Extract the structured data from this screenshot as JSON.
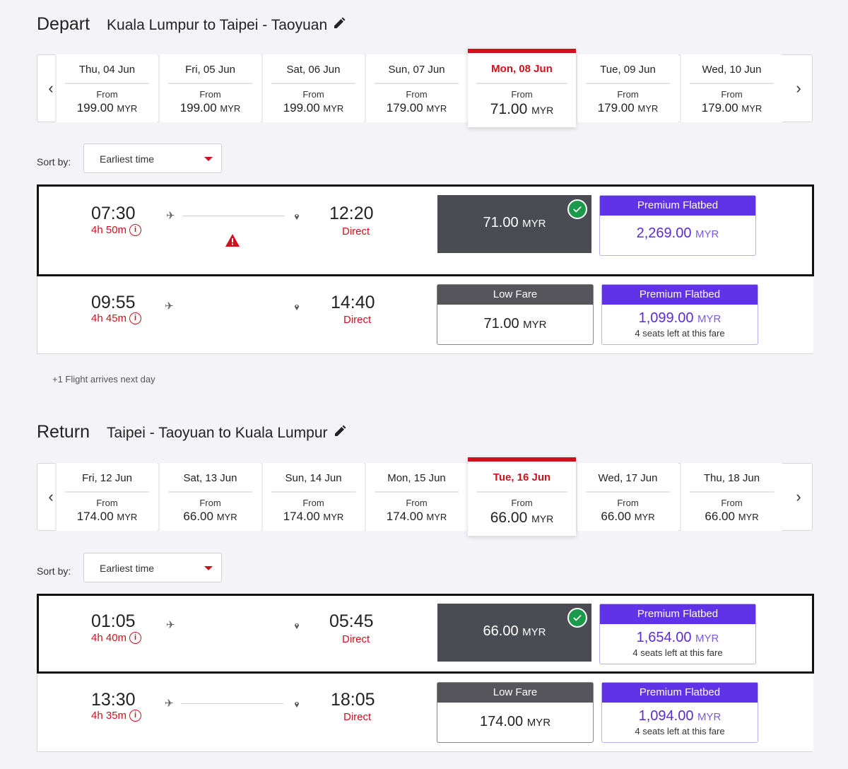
{
  "depart": {
    "title": "Depart",
    "route": "Kuala Lumpur to Taipei - Taoyuan",
    "days": [
      {
        "label": "Thu, 04 Jun",
        "from": "From",
        "price": "199.00",
        "cur": "MYR"
      },
      {
        "label": "Fri, 05 Jun",
        "from": "From",
        "price": "199.00",
        "cur": "MYR"
      },
      {
        "label": "Sat, 06 Jun",
        "from": "From",
        "price": "199.00",
        "cur": "MYR"
      },
      {
        "label": "Sun, 07 Jun",
        "from": "From",
        "price": "179.00",
        "cur": "MYR"
      },
      {
        "label": "Mon, 08 Jun",
        "from": "From",
        "price": "71.00",
        "cur": "MYR"
      },
      {
        "label": "Tue, 09 Jun",
        "from": "From",
        "price": "179.00",
        "cur": "MYR"
      },
      {
        "label": "Wed, 10 Jun",
        "from": "From",
        "price": "179.00",
        "cur": "MYR"
      }
    ],
    "sort_label": "Sort by:",
    "sort_value": "Earliest time",
    "flights": [
      {
        "dep": "07:30",
        "dur": "4h 50m",
        "arr": "12:20",
        "direct": "Direct",
        "selected_fare": "71.00",
        "cur": "MYR",
        "prem_hdr": "Premium Flatbed",
        "prem_price": "2,269.00",
        "prem_seats": ""
      },
      {
        "dep": "09:55",
        "dur": "4h 45m",
        "arr": "14:40",
        "direct": "Direct",
        "low_hdr": "Low Fare",
        "low_price": "71.00",
        "cur": "MYR",
        "prem_hdr": "Premium Flatbed",
        "prem_price": "1,099.00",
        "prem_seats": "4 seats left at this fare"
      }
    ],
    "note": "+1 Flight arrives next day"
  },
  "return": {
    "title": "Return",
    "route": "Taipei - Taoyuan to Kuala Lumpur",
    "days": [
      {
        "label": "Fri, 12 Jun",
        "from": "From",
        "price": "174.00",
        "cur": "MYR"
      },
      {
        "label": "Sat, 13 Jun",
        "from": "From",
        "price": "66.00",
        "cur": "MYR"
      },
      {
        "label": "Sun, 14 Jun",
        "from": "From",
        "price": "174.00",
        "cur": "MYR"
      },
      {
        "label": "Mon, 15 Jun",
        "from": "From",
        "price": "174.00",
        "cur": "MYR"
      },
      {
        "label": "Tue, 16 Jun",
        "from": "From",
        "price": "66.00",
        "cur": "MYR"
      },
      {
        "label": "Wed, 17 Jun",
        "from": "From",
        "price": "66.00",
        "cur": "MYR"
      },
      {
        "label": "Thu, 18 Jun",
        "from": "From",
        "price": "66.00",
        "cur": "MYR"
      }
    ],
    "sort_label": "Sort by:",
    "sort_value": "Earliest time",
    "flights": [
      {
        "dep": "01:05",
        "dur": "4h 40m",
        "arr": "05:45",
        "direct": "Direct",
        "selected_fare": "66.00",
        "cur": "MYR",
        "prem_hdr": "Premium Flatbed",
        "prem_price": "1,654.00",
        "prem_seats": "4 seats left at this fare"
      },
      {
        "dep": "13:30",
        "dur": "4h 35m",
        "arr": "18:05",
        "direct": "Direct",
        "low_hdr": "Low Fare",
        "low_price": "174.00",
        "cur": "MYR",
        "prem_hdr": "Premium Flatbed",
        "prem_price": "1,094.00",
        "prem_seats": "4 seats left at this fare"
      }
    ]
  },
  "colors": {
    "accent": "#d0101c",
    "premium": "#6032e8",
    "selected": "#4b4b53",
    "check": "#1a9a4a"
  },
  "icons": [
    "chevron-left-icon",
    "chevron-right-icon",
    "pencil-icon",
    "plane-icon",
    "pin-icon",
    "info-icon",
    "warning-icon",
    "check-icon",
    "caret-down-icon"
  ]
}
